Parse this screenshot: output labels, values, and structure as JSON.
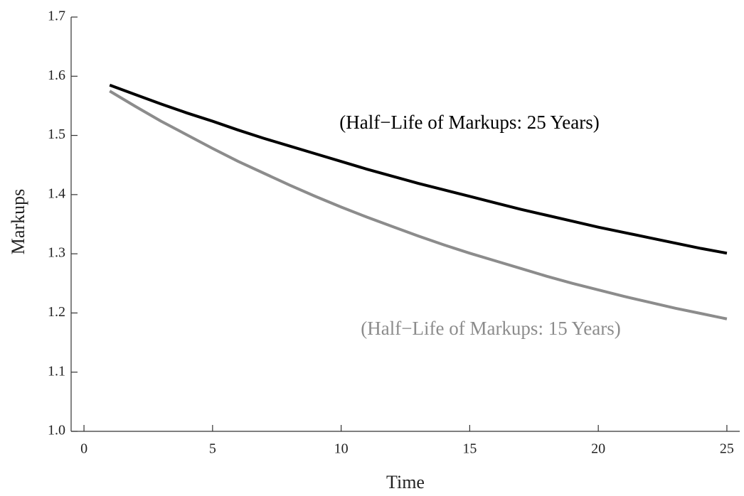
{
  "chart_data": {
    "type": "line",
    "x_label": "Time",
    "y_label": "Markups",
    "x": [
      1,
      2,
      3,
      4,
      5,
      6,
      7,
      8,
      9,
      10,
      11,
      12,
      13,
      14,
      15,
      16,
      17,
      18,
      19,
      20,
      21,
      22,
      23,
      24,
      25
    ],
    "series": [
      {
        "name": "(Half−Life of Markups: 25 Years)",
        "color": "#000000",
        "values": [
          1.585,
          1.569,
          1.553,
          1.538,
          1.524,
          1.509,
          1.495,
          1.482,
          1.469,
          1.456,
          1.443,
          1.431,
          1.419,
          1.408,
          1.397,
          1.386,
          1.375,
          1.365,
          1.355,
          1.345,
          1.336,
          1.327,
          1.318,
          1.309,
          1.301
        ]
      },
      {
        "name": "(Half−Life of Markups: 15 Years)",
        "color": "#8c8c8c",
        "values": [
          1.575,
          1.549,
          1.524,
          1.501,
          1.478,
          1.456,
          1.436,
          1.416,
          1.397,
          1.379,
          1.362,
          1.346,
          1.33,
          1.315,
          1.301,
          1.288,
          1.275,
          1.262,
          1.25,
          1.239,
          1.228,
          1.218,
          1.208,
          1.199,
          1.19
        ]
      }
    ],
    "xlim": [
      -0.5,
      25.5
    ],
    "ylim": [
      1.0,
      1.7
    ],
    "xticks": [
      0,
      5,
      10,
      15,
      20,
      25
    ],
    "yticks": [
      {
        "value": 1.0,
        "label": "1.0"
      },
      1.1,
      1.2,
      1.3,
      1.4,
      1.5,
      1.6,
      1.7
    ],
    "grid": false
  }
}
